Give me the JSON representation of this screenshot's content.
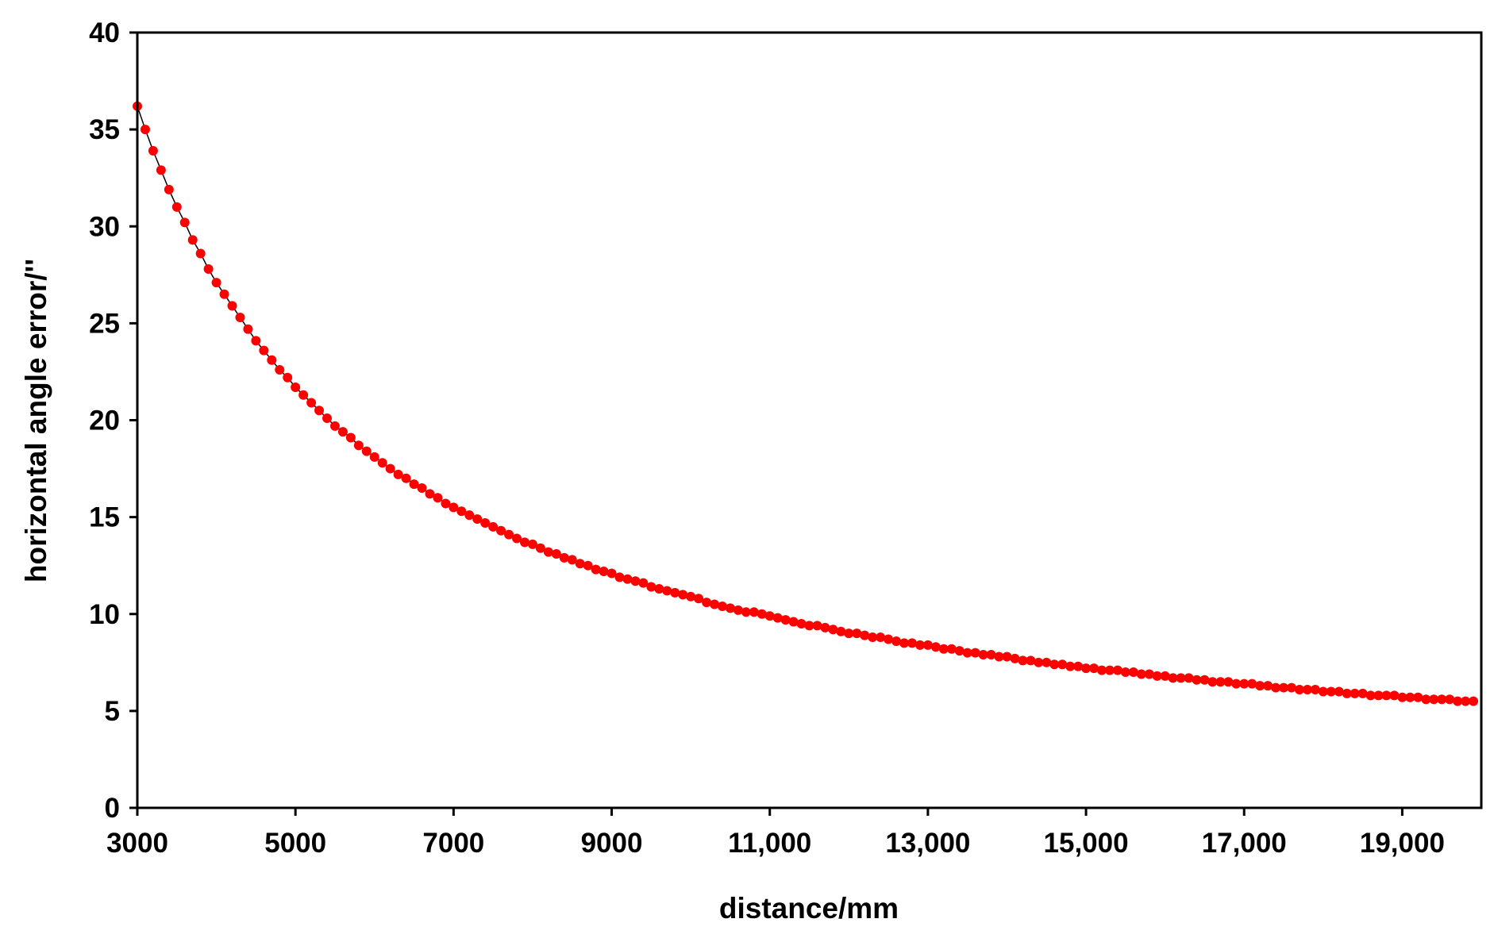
{
  "chart_data": {
    "type": "scatter",
    "title": "",
    "xlabel": "distance/mm",
    "ylabel": "horizontal angle error/''",
    "xlim": [
      3000,
      20000
    ],
    "ylim": [
      0,
      40
    ],
    "x_ticks": [
      3000,
      5000,
      7000,
      9000,
      11000,
      13000,
      15000,
      17000,
      19000
    ],
    "x_tick_labels": [
      "3000",
      "5000",
      "7000",
      "9000",
      "11,000",
      "13,000",
      "15,000",
      "17,000",
      "19,000"
    ],
    "y_ticks": [
      0,
      5,
      10,
      15,
      20,
      25,
      30,
      35,
      40
    ],
    "y_tick_labels": [
      "0",
      "5",
      "10",
      "15",
      "20",
      "25",
      "30",
      "35",
      "40"
    ],
    "grid": false,
    "legend": "none",
    "marker_color": "#ff0000",
    "line_color": "#000000",
    "series": [
      {
        "x": [
          3000,
          3100,
          3200,
          3300,
          3400,
          3500,
          3600,
          3700,
          3800,
          3900,
          4000,
          4100,
          4200,
          4300,
          4400,
          4500,
          4600,
          4700,
          4800,
          4900,
          5000,
          5100,
          5200,
          5300,
          5400,
          5500,
          5600,
          5700,
          5800,
          5900,
          6000,
          6100,
          6200,
          6300,
          6400,
          6500,
          6600,
          6700,
          6800,
          6900,
          7000,
          7100,
          7200,
          7300,
          7400,
          7500,
          7600,
          7700,
          7800,
          7900,
          8000,
          8100,
          8200,
          8300,
          8400,
          8500,
          8600,
          8700,
          8800,
          8900,
          9000,
          9100,
          9200,
          9300,
          9400,
          9500,
          9600,
          9700,
          9800,
          9900,
          10000,
          10100,
          10200,
          10300,
          10400,
          10500,
          10600,
          10700,
          10800,
          10900,
          11000,
          11100,
          11200,
          11300,
          11400,
          11500,
          11600,
          11700,
          11800,
          11900,
          12000,
          12100,
          12200,
          12300,
          12400,
          12500,
          12600,
          12700,
          12800,
          12900,
          13000,
          13100,
          13200,
          13300,
          13400,
          13500,
          13600,
          13700,
          13800,
          13900,
          14000,
          14100,
          14200,
          14300,
          14400,
          14500,
          14600,
          14700,
          14800,
          14900,
          15000,
          15100,
          15200,
          15300,
          15400,
          15500,
          15600,
          15700,
          15800,
          15900,
          16000,
          16100,
          16200,
          16300,
          16400,
          16500,
          16600,
          16700,
          16800,
          16900,
          17000,
          17100,
          17200,
          17300,
          17400,
          17500,
          17600,
          17700,
          17800,
          17900,
          18000,
          18100,
          18200,
          18300,
          18400,
          18500,
          18600,
          18700,
          18800,
          18900,
          19000,
          19100,
          19200,
          19300,
          19400,
          19500,
          19600,
          19700,
          19800,
          19900
        ],
        "y": [
          36.2,
          35.0,
          33.9,
          32.9,
          31.9,
          31.0,
          30.2,
          29.3,
          28.6,
          27.8,
          27.1,
          26.5,
          25.9,
          25.3,
          24.7,
          24.1,
          23.6,
          23.1,
          22.6,
          22.2,
          21.7,
          21.3,
          20.9,
          20.5,
          20.1,
          19.7,
          19.4,
          19.1,
          18.7,
          18.4,
          18.1,
          17.8,
          17.5,
          17.2,
          17.0,
          16.7,
          16.5,
          16.2,
          16.0,
          15.7,
          15.5,
          15.3,
          15.1,
          14.9,
          14.7,
          14.5,
          14.3,
          14.1,
          13.9,
          13.7,
          13.6,
          13.4,
          13.2,
          13.1,
          12.9,
          12.8,
          12.6,
          12.5,
          12.3,
          12.2,
          12.1,
          11.9,
          11.8,
          11.7,
          11.6,
          11.4,
          11.3,
          11.2,
          11.1,
          11.0,
          10.9,
          10.8,
          10.6,
          10.5,
          10.4,
          10.3,
          10.2,
          10.1,
          10.1,
          10.0,
          9.9,
          9.8,
          9.7,
          9.6,
          9.5,
          9.4,
          9.4,
          9.3,
          9.2,
          9.1,
          9.0,
          9.0,
          8.9,
          8.8,
          8.8,
          8.7,
          8.6,
          8.5,
          8.5,
          8.4,
          8.4,
          8.3,
          8.2,
          8.2,
          8.1,
          8.0,
          8.0,
          7.9,
          7.9,
          7.8,
          7.8,
          7.7,
          7.6,
          7.6,
          7.5,
          7.5,
          7.4,
          7.4,
          7.3,
          7.3,
          7.2,
          7.2,
          7.1,
          7.1,
          7.1,
          7.0,
          7.0,
          6.9,
          6.9,
          6.8,
          6.8,
          6.7,
          6.7,
          6.7,
          6.6,
          6.6,
          6.5,
          6.5,
          6.5,
          6.4,
          6.4,
          6.4,
          6.3,
          6.3,
          6.2,
          6.2,
          6.2,
          6.1,
          6.1,
          6.1,
          6.0,
          6.0,
          6.0,
          5.9,
          5.9,
          5.9,
          5.8,
          5.8,
          5.8,
          5.8,
          5.7,
          5.7,
          5.7,
          5.6,
          5.6,
          5.6,
          5.6,
          5.5,
          5.5,
          5.5
        ]
      }
    ]
  }
}
